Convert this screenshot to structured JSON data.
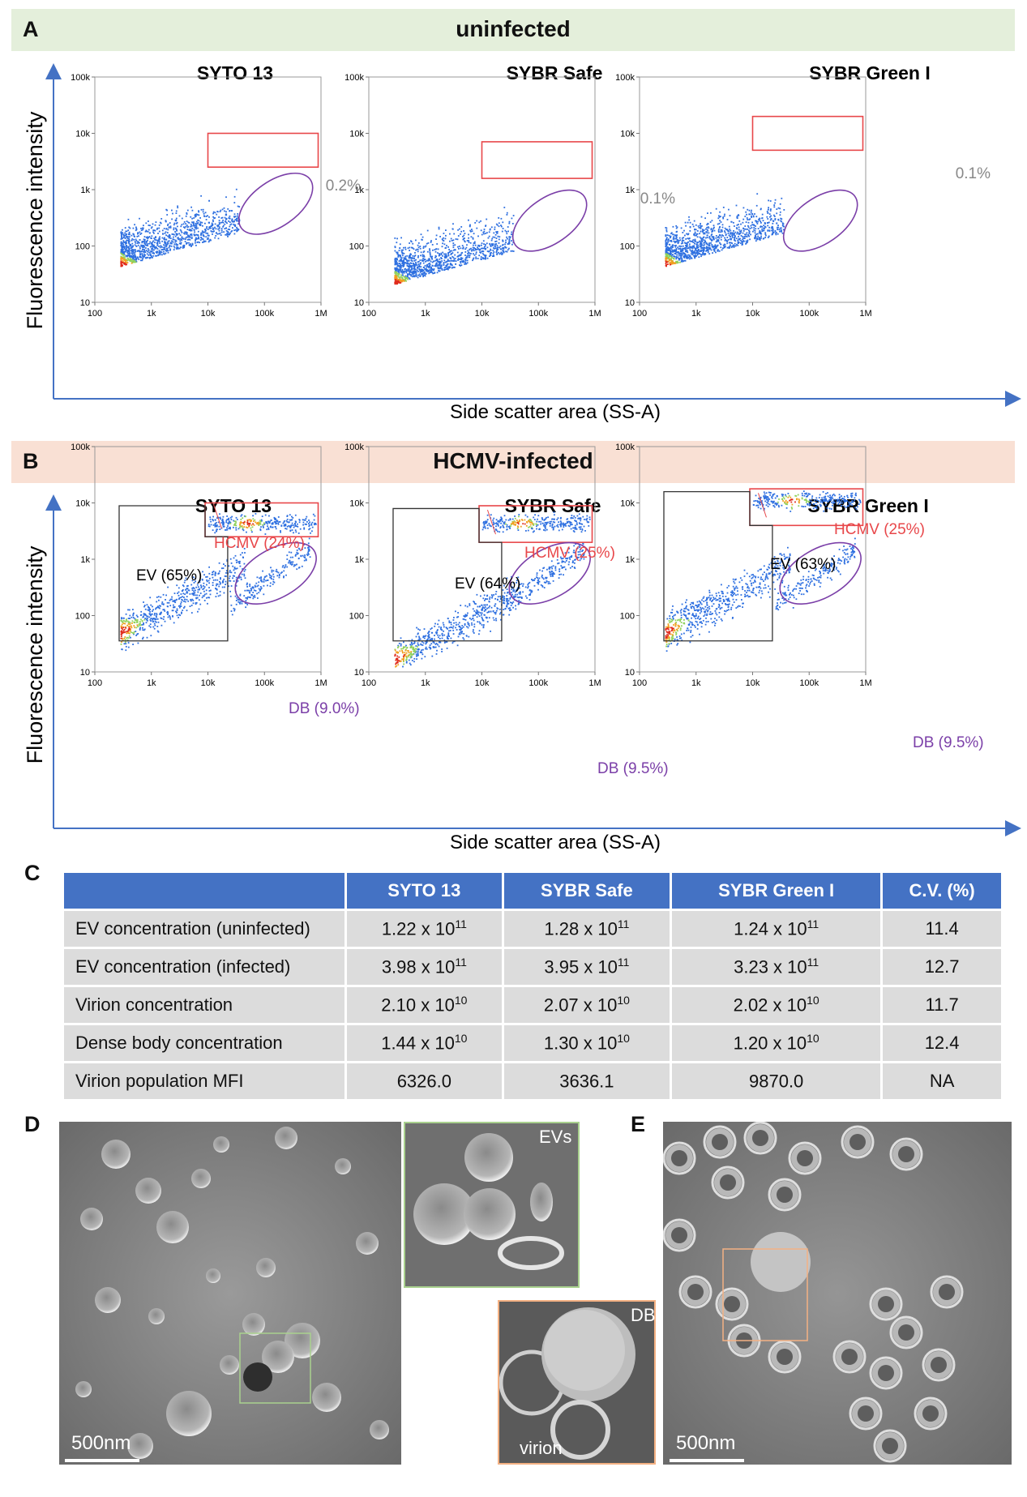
{
  "panel_a": {
    "letter": "A",
    "title": "uninfected",
    "ylabel": "Fluorescence intensity",
    "xlabel": "Side scatter area (SS-A)",
    "plots": [
      {
        "title": "SYTO 13",
        "gate_label": "0.2%"
      },
      {
        "title": "SYBR Safe",
        "gate_label": "0.1%"
      },
      {
        "title": "SYBR Green I",
        "gate_label": "0.1%"
      }
    ]
  },
  "panel_b": {
    "letter": "B",
    "title": "HCMV-infected",
    "ylabel": "Fluorescence intensity",
    "xlabel": "Side scatter area (SS-A)",
    "plots": [
      {
        "title": "SYTO 13",
        "ev": "EV (65%)",
        "hcmv": "HCMV (24%)",
        "db": "DB (9.0%)"
      },
      {
        "title": "SYBR Safe",
        "ev": "EV (64%)",
        "hcmv": "HCMV (25%)",
        "db": "DB (9.5%)"
      },
      {
        "title": "SYBR Green I",
        "ev": "EV (63%)",
        "hcmv": "HCMV (25%)",
        "db": "DB (9.5%)"
      }
    ]
  },
  "axes": {
    "x_ticks": [
      "100",
      "1k",
      "10k",
      "100k",
      "1M"
    ],
    "y_ticks": [
      "100k",
      "10k",
      "1k",
      "100",
      "10"
    ]
  },
  "colors": {
    "gate_red": "#e8474a",
    "gate_purple": "#7b3fa8",
    "axis_blue": "#4472c4",
    "header_blue": "#4472c4"
  },
  "chart_data": [
    {
      "type": "scatter",
      "title": "SYTO 13 (uninfected)",
      "xlabel": "Side scatter area (SS-A)",
      "ylabel": "Fluorescence intensity",
      "xscale": "log",
      "yscale": "log",
      "xlim": [
        100,
        1000000
      ],
      "ylim": [
        10,
        100000
      ],
      "gates": [
        {
          "name": "HCMV gate",
          "percent": 0.2
        }
      ]
    },
    {
      "type": "scatter",
      "title": "SYBR Safe (uninfected)",
      "xscale": "log",
      "yscale": "log",
      "xlim": [
        100,
        1000000
      ],
      "ylim": [
        10,
        100000
      ],
      "gates": [
        {
          "name": "HCMV gate",
          "percent": 0.1
        }
      ]
    },
    {
      "type": "scatter",
      "title": "SYBR Green I (uninfected)",
      "xscale": "log",
      "yscale": "log",
      "xlim": [
        100,
        1000000
      ],
      "ylim": [
        10,
        100000
      ],
      "gates": [
        {
          "name": "HCMV gate",
          "percent": 0.1
        }
      ]
    },
    {
      "type": "scatter",
      "title": "SYTO 13 (HCMV-infected)",
      "xscale": "log",
      "yscale": "log",
      "xlim": [
        100,
        1000000
      ],
      "ylim": [
        10,
        100000
      ],
      "gates": [
        {
          "name": "EV",
          "percent": 65
        },
        {
          "name": "HCMV",
          "percent": 24
        },
        {
          "name": "DB",
          "percent": 9.0
        }
      ]
    },
    {
      "type": "scatter",
      "title": "SYBR Safe (HCMV-infected)",
      "xscale": "log",
      "yscale": "log",
      "xlim": [
        100,
        1000000
      ],
      "ylim": [
        10,
        100000
      ],
      "gates": [
        {
          "name": "EV",
          "percent": 64
        },
        {
          "name": "HCMV",
          "percent": 25
        },
        {
          "name": "DB",
          "percent": 9.5
        }
      ]
    },
    {
      "type": "scatter",
      "title": "SYBR Green I (HCMV-infected)",
      "xscale": "log",
      "yscale": "log",
      "xlim": [
        100,
        1000000
      ],
      "ylim": [
        10,
        100000
      ],
      "gates": [
        {
          "name": "EV",
          "percent": 63
        },
        {
          "name": "HCMV",
          "percent": 25
        },
        {
          "name": "DB",
          "percent": 9.5
        }
      ]
    }
  ],
  "panel_c": {
    "letter": "C",
    "headers": [
      "",
      "SYTO 13",
      "SYBR Safe",
      "SYBR Green I",
      "C.V. (%)"
    ],
    "rows": [
      {
        "label": "EV concentration (uninfected)",
        "cells": [
          {
            "m": "1.22 x 10",
            "e": "11"
          },
          {
            "m": "1.28 x 10",
            "e": "11"
          },
          {
            "m": "1.24 x 10",
            "e": "11"
          }
        ],
        "cv": "11.4"
      },
      {
        "label": "EV concentration (infected)",
        "cells": [
          {
            "m": "3.98 x 10",
            "e": "11"
          },
          {
            "m": "3.95 x 10",
            "e": "11"
          },
          {
            "m": "3.23 x 10",
            "e": "11"
          }
        ],
        "cv": "12.7"
      },
      {
        "label": "Virion concentration",
        "cells": [
          {
            "m": "2.10 x 10",
            "e": "10"
          },
          {
            "m": "2.07 x 10",
            "e": "10"
          },
          {
            "m": "2.02 x 10",
            "e": "10"
          }
        ],
        "cv": "11.7"
      },
      {
        "label": "Dense body concentration",
        "cells": [
          {
            "m": "1.44 x 10",
            "e": "10"
          },
          {
            "m": "1.30 x 10",
            "e": "10"
          },
          {
            "m": "1.20 x 10",
            "e": "10"
          }
        ],
        "cv": "12.4"
      },
      {
        "label": "Virion population MFI",
        "cells": [
          {
            "m": "6326.0",
            "e": ""
          },
          {
            "m": "3636.1",
            "e": ""
          },
          {
            "m": "9870.0",
            "e": ""
          }
        ],
        "cv": "NA"
      }
    ]
  },
  "panel_d": {
    "letter": "D",
    "scale": "500nm",
    "inset_evs": "EVs",
    "inset_db": "DB",
    "inset_virion": "virion"
  },
  "panel_e": {
    "letter": "E",
    "scale": "500nm"
  }
}
